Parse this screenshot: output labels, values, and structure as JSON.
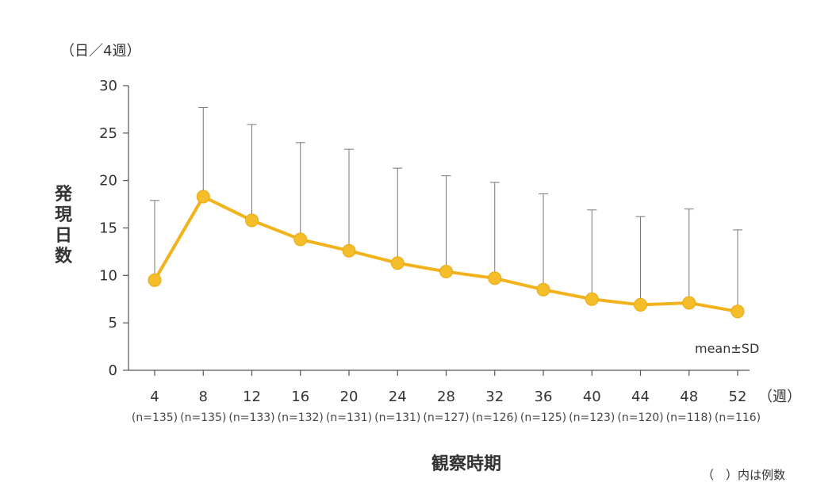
{
  "chart_data": {
    "type": "line",
    "y_unit": "（日／4週）",
    "ylabel": "発現日数",
    "xlabel": "観察時期",
    "x_unit": "（週）",
    "ylim": [
      0,
      30
    ],
    "yticks": [
      0,
      5,
      10,
      15,
      20,
      25,
      30
    ],
    "grid": false,
    "x": [
      4,
      8,
      12,
      16,
      20,
      24,
      28,
      32,
      36,
      40,
      44,
      48,
      52
    ],
    "n_labels": [
      "(n=135)",
      "(n=135)",
      "(n=133)",
      "(n=132)",
      "(n=131)",
      "(n=131)",
      "(n=127)",
      "(n=126)",
      "(n=125)",
      "(n=123)",
      "(n=120)",
      "(n=118)",
      "(n=116)"
    ],
    "series": [
      {
        "mean": [
          9.5,
          18.3,
          15.8,
          13.8,
          12.6,
          11.3,
          10.4,
          9.7,
          8.5,
          7.5,
          6.9,
          7.1,
          6.2
        ],
        "upper_sd": [
          17.9,
          27.7,
          25.9,
          24.0,
          23.3,
          21.3,
          20.5,
          19.8,
          18.6,
          16.9,
          16.2,
          17.0,
          14.8
        ],
        "color": "#f2b21b"
      }
    ],
    "legend_note": "mean±SD",
    "footnote": "（　）内は例数"
  }
}
